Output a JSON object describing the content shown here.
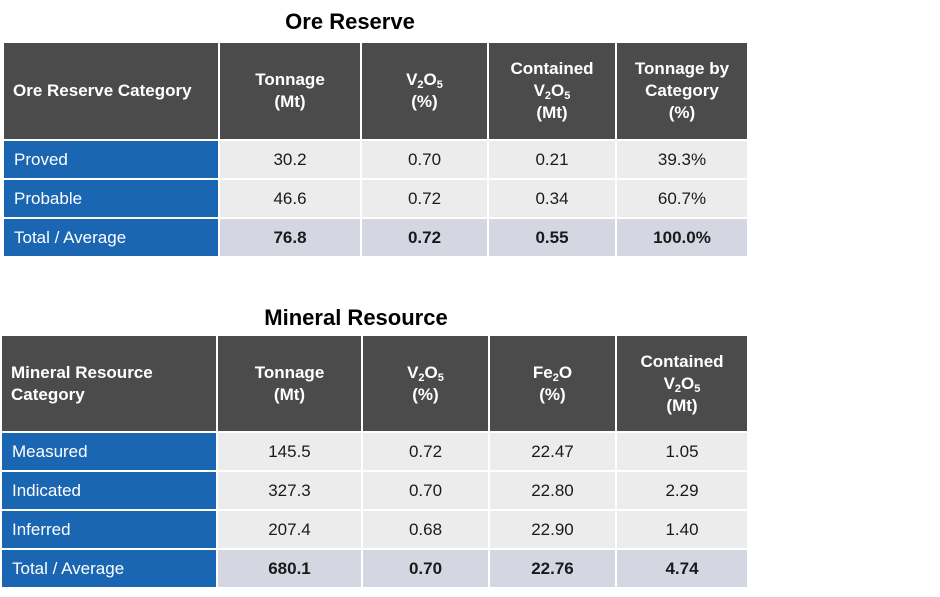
{
  "ore_reserve": {
    "title": "Ore Reserve",
    "headers": {
      "category": "Ore Reserve Category",
      "tonnage": [
        "Tonnage",
        "(Mt)"
      ],
      "v2o5": [
        "V",
        "2",
        "O",
        "5",
        "(%)"
      ],
      "contained": [
        "Contained",
        "V",
        "2",
        "O",
        "5",
        "(Mt)"
      ],
      "tonnage_by_category": [
        "Tonnage by",
        "Category",
        "(%)"
      ]
    },
    "rows": [
      {
        "label": "Proved",
        "tonnage": "30.2",
        "v2o5": "0.70",
        "contained": "0.21",
        "pct": "39.3%"
      },
      {
        "label": "Probable",
        "tonnage": "46.6",
        "v2o5": "0.72",
        "contained": "0.34",
        "pct": "60.7%"
      }
    ],
    "total": {
      "label": "Total / Average",
      "tonnage": "76.8",
      "v2o5": "0.72",
      "contained": "0.55",
      "pct": "100.0%"
    }
  },
  "mineral_resource": {
    "title": "Mineral Resource",
    "headers": {
      "category": [
        "Mineral Resource",
        "Category"
      ],
      "tonnage": [
        "Tonnage",
        "(Mt)"
      ],
      "v2o5": [
        "V",
        "2",
        "O",
        "5",
        "(%)"
      ],
      "fe2o": [
        "Fe",
        "2",
        "O",
        "(%)"
      ],
      "contained": [
        "Contained",
        "V",
        "2",
        "O",
        "5",
        "(Mt)"
      ]
    },
    "rows": [
      {
        "label": "Measured",
        "tonnage": "145.5",
        "v2o5": "0.72",
        "fe2o": "22.47",
        "contained": "1.05"
      },
      {
        "label": "Indicated",
        "tonnage": "327.3",
        "v2o5": "0.70",
        "fe2o": "22.80",
        "contained": "2.29"
      },
      {
        "label": "Inferred",
        "tonnage": "207.4",
        "v2o5": "0.68",
        "fe2o": "22.90",
        "contained": "1.40"
      }
    ],
    "total": {
      "label": "Total / Average",
      "tonnage": "680.1",
      "v2o5": "0.70",
      "fe2o": "22.76",
      "contained": "4.74"
    }
  }
}
